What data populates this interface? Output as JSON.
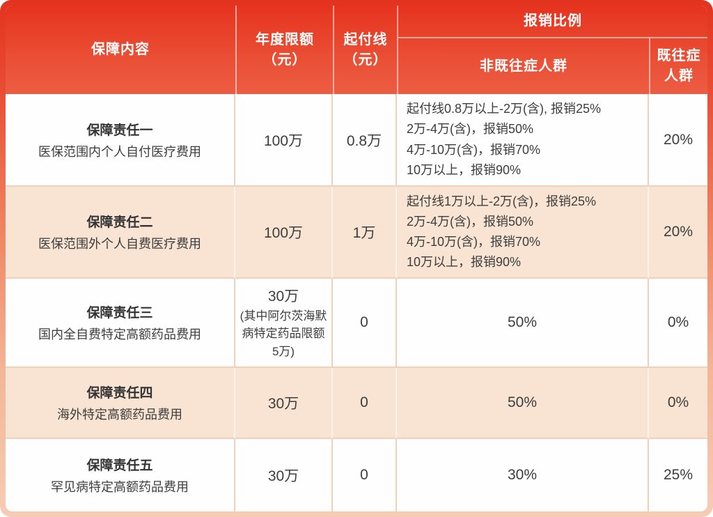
{
  "table": {
    "header": {
      "coverage": "保障内容",
      "annual_limit_line1": "年度限额",
      "annual_limit_line2": "（元）",
      "deductible_line1": "起付线",
      "deductible_line2": "（元）",
      "reimbursement": "报销比例",
      "non_preexisting": "非既往症人群",
      "preexisting": "既往症人群"
    },
    "rows": [
      {
        "title": "保障责任一",
        "subtitle": "医保范围内个人自付医疗费用",
        "annual_limit": "100万",
        "annual_limit_note": "",
        "deductible": "0.8万",
        "reimbursement_non_preexisting": [
          "起付线0.8万以上-2万(含), 报销25%",
          "2万-4万(含)，报销50%",
          "4万-10万(含)，报销70%",
          "10万以上，报销90%"
        ],
        "reimbursement_preexisting": "20%"
      },
      {
        "title": "保障责任二",
        "subtitle": "医保范围外个人自费医疗费用",
        "annual_limit": "100万",
        "annual_limit_note": "",
        "deductible": "1万",
        "reimbursement_non_preexisting": [
          "起付线1万以上-2万(含)，报销25%",
          "2万-4万(含)，报销50%",
          "4万-10万(含)，报销70%",
          "10万以上，报销90%"
        ],
        "reimbursement_preexisting": "20%"
      },
      {
        "title": "保障责任三",
        "subtitle": "国内全自费特定高额药品费用",
        "annual_limit": "30万",
        "annual_limit_note": "(其中阿尔茨海默病特定药品限额5万)",
        "deductible": "0",
        "reimbursement_non_preexisting": [
          "50%"
        ],
        "reimbursement_preexisting": "0%"
      },
      {
        "title": "保障责任四",
        "subtitle": "海外特定高额药品费用",
        "annual_limit": "30万",
        "annual_limit_note": "",
        "deductible": "0",
        "reimbursement_non_preexisting": [
          "50%"
        ],
        "reimbursement_preexisting": "0%"
      },
      {
        "title": "保障责任五",
        "subtitle": "罕见病特定高额药品费用",
        "annual_limit": "30万",
        "annual_limit_note": "",
        "deductible": "0",
        "reimbursement_non_preexisting": [
          "30%"
        ],
        "reimbursement_preexisting": "25%"
      }
    ]
  },
  "colors": {
    "header_red_top": "#e6331f",
    "header_red_bottom": "#ec5c42",
    "shaded_row": "#f9e3d2",
    "grid_line": "#f2cfba",
    "frame_bottom": "#f6ccb4",
    "text": "#3d3d3d",
    "header_text": "#ffffff"
  }
}
